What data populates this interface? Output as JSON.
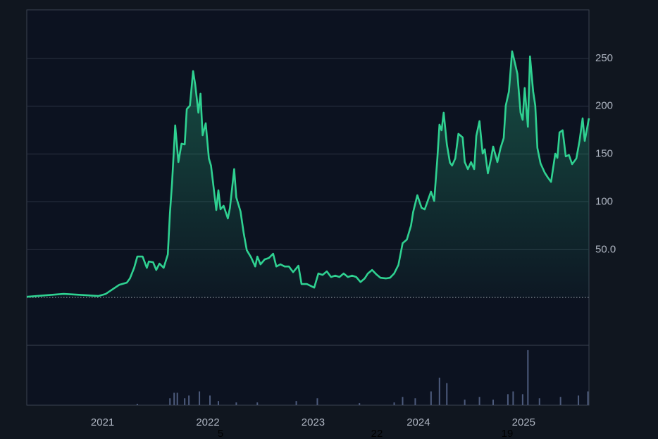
{
  "chart_data": {
    "type": "line",
    "color": "#2fd191",
    "xlim": [
      2020.28,
      2025.62
    ],
    "xticks": [
      2021,
      2022,
      2023,
      2024,
      2025
    ],
    "ylim": [
      -50,
      300
    ],
    "yticks": [
      {
        "value": 50,
        "label": "50.0"
      },
      100,
      150,
      200,
      250
    ],
    "grid": true,
    "x": [
      2020.28,
      2020.63,
      2020.76,
      2020.96,
      2021.03,
      2021.09,
      2021.16,
      2021.23,
      2021.26,
      2021.3,
      2021.33,
      2021.38,
      2021.42,
      2021.44,
      2021.48,
      2021.51,
      2021.54,
      2021.58,
      2021.62,
      2021.64,
      2021.66,
      2021.69,
      2021.72,
      2021.75,
      2021.78,
      2021.8,
      2021.83,
      2021.86,
      2021.88,
      2021.91,
      2021.93,
      2021.95,
      2021.98,
      2022.01,
      2022.03,
      2022.05,
      2022.08,
      2022.1,
      2022.12,
      2022.15,
      2022.19,
      2022.21,
      2022.25,
      2022.27,
      2022.31,
      2022.34,
      2022.37,
      2022.41,
      2022.45,
      2022.47,
      2022.5,
      2022.54,
      2022.58,
      2022.62,
      2022.65,
      2022.69,
      2022.73,
      2022.77,
      2022.81,
      2022.86,
      2022.89,
      2022.94,
      2022.97,
      2023.01,
      2023.05,
      2023.09,
      2023.13,
      2023.17,
      2023.21,
      2023.25,
      2023.29,
      2023.33,
      2023.37,
      2023.41,
      2023.45,
      2023.49,
      2023.52,
      2023.56,
      2023.6,
      2023.64,
      2023.69,
      2023.73,
      2023.77,
      2023.81,
      2023.85,
      2023.89,
      2023.93,
      2023.95,
      2023.99,
      2024.03,
      2024.06,
      2024.1,
      2024.12,
      2024.15,
      2024.18,
      2024.2,
      2024.22,
      2024.24,
      2024.27,
      2024.3,
      2024.32,
      2024.35,
      2024.38,
      2024.42,
      2024.44,
      2024.47,
      2024.5,
      2024.53,
      2024.55,
      2024.58,
      2024.61,
      2024.63,
      2024.66,
      2024.69,
      2024.71,
      2024.75,
      2024.78,
      2024.81,
      2024.83,
      2024.86,
      2024.89,
      2024.91,
      2024.94,
      2024.97,
      2024.99,
      2025.01,
      2025.04,
      2025.06,
      2025.09,
      2025.11,
      2025.13,
      2025.16,
      2025.2,
      2025.23,
      2025.26,
      2025.3,
      2025.32,
      2025.34,
      2025.37,
      2025.4,
      2025.43,
      2025.46,
      2025.5,
      2025.53,
      2025.56,
      2025.58,
      2025.62
    ],
    "values": [
      0.7,
      3.7,
      2.9,
      1.5,
      3.7,
      8.1,
      13.3,
      15.5,
      19.9,
      31,
      42.8,
      42.8,
      31,
      37.6,
      36.9,
      28.8,
      35.4,
      31,
      45,
      87.8,
      119.5,
      180,
      141.6,
      160.8,
      160,
      196.9,
      200.6,
      236.7,
      222.7,
      193.2,
      213.1,
      169.6,
      182.2,
      145.3,
      137.9,
      119.5,
      91.4,
      112.1,
      92.2,
      95.9,
      82.6,
      93.7,
      134.2,
      104.7,
      90,
      67.8,
      49.4,
      42,
      32.4,
      42.8,
      34.7,
      39.8,
      41.3,
      45.7,
      32.4,
      34.7,
      32.4,
      32.4,
      26.5,
      33.2,
      14,
      14,
      12.5,
      10.3,
      25.1,
      23.6,
      27.3,
      21.4,
      22.9,
      21.4,
      25.1,
      21.4,
      22.9,
      21.4,
      16.2,
      19.9,
      25.1,
      28.8,
      24.3,
      20.6,
      19.9,
      20.6,
      25.1,
      33.9,
      56.8,
      60.5,
      75.2,
      89.2,
      106.9,
      93.7,
      92.2,
      104.7,
      110.6,
      101,
      145.3,
      180.7,
      174.8,
      193.2,
      160,
      140.9,
      137.9,
      145.3,
      171.1,
      167.4,
      141.6,
      134.2,
      141.6,
      134.2,
      168.9,
      184.4,
      150.4,
      154.9,
      129.8,
      145.3,
      157.8,
      141.6,
      156.3,
      166.7,
      200.6,
      215.3,
      257.4,
      248.5,
      233.8,
      193.2,
      185.8,
      219,
      178.5,
      252.2,
      215.3,
      200.6,
      156.3,
      140.1,
      130.5,
      125.4,
      120.9,
      150.4,
      146,
      172.6,
      174.8,
      147.5,
      149,
      139.4,
      145.3,
      163.7,
      187.3,
      163.7,
      187.3
    ],
    "volume": {
      "color": "#4d5b7c",
      "ylim": [
        0,
        85
      ],
      "x": [
        2021.33,
        2021.64,
        2021.68,
        2021.71,
        2021.78,
        2021.82,
        2021.92,
        2022.02,
        2022.1,
        2022.27,
        2022.47,
        2022.84,
        2023.04,
        2023.44,
        2023.77,
        2023.85,
        2023.97,
        2024.12,
        2024.2,
        2024.27,
        2024.44,
        2024.58,
        2024.71,
        2024.85,
        2024.9,
        2024.99,
        2025.04,
        2025.15,
        2025.35,
        2025.52,
        2025.61
      ],
      "values": [
        2,
        10,
        18,
        18,
        10,
        14,
        20,
        14,
        6,
        4,
        4,
        6,
        10,
        3,
        4,
        12,
        10,
        20,
        40,
        32,
        8,
        12,
        8,
        16,
        20,
        16,
        80,
        10,
        12,
        14,
        20
      ]
    },
    "bottom_labels": [
      "5",
      "22",
      "19"
    ]
  }
}
